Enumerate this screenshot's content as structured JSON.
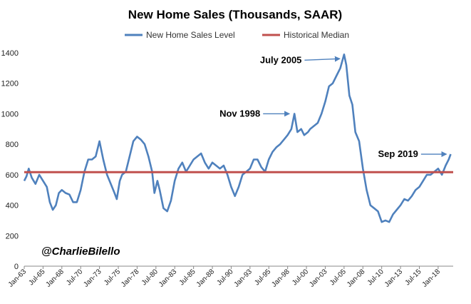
{
  "chart_data": {
    "type": "line",
    "title": "New Home Sales (Thousands, SAAR)",
    "xlabel": "",
    "ylabel": "",
    "ylim": [
      0,
      1400
    ],
    "yticks": [
      0,
      200,
      400,
      600,
      800,
      1000,
      1200,
      1400
    ],
    "legend_position": "top",
    "grid": false,
    "x_tick_labels": [
      "Jan-63",
      "Jul-65",
      "Jan-68",
      "Jul-70",
      "Jan-73",
      "Jul-75",
      "Jan-78",
      "Jul-80",
      "Jan-83",
      "Jul-85",
      "Jan-88",
      "Jul-90",
      "Jan-93",
      "Jul-95",
      "Jan-98",
      "Jul-00",
      "Jan-03",
      "Jul-05",
      "Jan-08",
      "Jul-10",
      "Jan-13",
      "Jul-15",
      "Jan-18"
    ],
    "series": [
      {
        "name": "New Home Sales Level",
        "color": "#4f81bd",
        "points": [
          [
            1963.0,
            560
          ],
          [
            1963.3,
            590
          ],
          [
            1963.6,
            640
          ],
          [
            1964.0,
            580
          ],
          [
            1964.5,
            540
          ],
          [
            1965.0,
            600
          ],
          [
            1965.5,
            560
          ],
          [
            1966.0,
            520
          ],
          [
            1966.4,
            420
          ],
          [
            1966.8,
            370
          ],
          [
            1967.2,
            400
          ],
          [
            1967.6,
            480
          ],
          [
            1968.0,
            500
          ],
          [
            1968.5,
            480
          ],
          [
            1969.0,
            470
          ],
          [
            1969.5,
            420
          ],
          [
            1970.0,
            420
          ],
          [
            1970.5,
            500
          ],
          [
            1971.0,
            620
          ],
          [
            1971.5,
            700
          ],
          [
            1972.0,
            700
          ],
          [
            1972.5,
            720
          ],
          [
            1973.0,
            820
          ],
          [
            1973.5,
            700
          ],
          [
            1974.0,
            600
          ],
          [
            1974.5,
            540
          ],
          [
            1975.0,
            480
          ],
          [
            1975.3,
            440
          ],
          [
            1975.7,
            560
          ],
          [
            1976.0,
            600
          ],
          [
            1976.5,
            620
          ],
          [
            1977.0,
            720
          ],
          [
            1977.5,
            820
          ],
          [
            1978.0,
            850
          ],
          [
            1978.5,
            830
          ],
          [
            1979.0,
            800
          ],
          [
            1979.5,
            720
          ],
          [
            1980.0,
            620
          ],
          [
            1980.3,
            480
          ],
          [
            1980.7,
            560
          ],
          [
            1981.0,
            500
          ],
          [
            1981.5,
            380
          ],
          [
            1982.0,
            360
          ],
          [
            1982.5,
            430
          ],
          [
            1983.0,
            560
          ],
          [
            1983.5,
            640
          ],
          [
            1984.0,
            680
          ],
          [
            1984.5,
            620
          ],
          [
            1985.0,
            660
          ],
          [
            1985.5,
            700
          ],
          [
            1986.0,
            720
          ],
          [
            1986.5,
            740
          ],
          [
            1987.0,
            680
          ],
          [
            1987.5,
            640
          ],
          [
            1988.0,
            680
          ],
          [
            1988.5,
            660
          ],
          [
            1989.0,
            640
          ],
          [
            1989.5,
            660
          ],
          [
            1990.0,
            600
          ],
          [
            1990.5,
            520
          ],
          [
            1991.0,
            460
          ],
          [
            1991.5,
            520
          ],
          [
            1992.0,
            600
          ],
          [
            1992.5,
            620
          ],
          [
            1993.0,
            640
          ],
          [
            1993.5,
            700
          ],
          [
            1994.0,
            700
          ],
          [
            1994.5,
            650
          ],
          [
            1995.0,
            620
          ],
          [
            1995.5,
            700
          ],
          [
            1996.0,
            750
          ],
          [
            1996.5,
            780
          ],
          [
            1997.0,
            800
          ],
          [
            1997.5,
            830
          ],
          [
            1998.0,
            860
          ],
          [
            1998.5,
            900
          ],
          [
            1998.9,
            1000
          ],
          [
            1999.3,
            880
          ],
          [
            1999.8,
            900
          ],
          [
            2000.2,
            860
          ],
          [
            2000.7,
            880
          ],
          [
            2001.0,
            900
          ],
          [
            2001.5,
            920
          ],
          [
            2002.0,
            940
          ],
          [
            2002.5,
            1000
          ],
          [
            2003.0,
            1080
          ],
          [
            2003.5,
            1180
          ],
          [
            2004.0,
            1200
          ],
          [
            2004.5,
            1250
          ],
          [
            2005.0,
            1300
          ],
          [
            2005.5,
            1389
          ],
          [
            2005.8,
            1320
          ],
          [
            2006.2,
            1120
          ],
          [
            2006.6,
            1060
          ],
          [
            2007.0,
            880
          ],
          [
            2007.5,
            820
          ],
          [
            2008.0,
            640
          ],
          [
            2008.5,
            500
          ],
          [
            2009.0,
            400
          ],
          [
            2009.5,
            380
          ],
          [
            2010.0,
            360
          ],
          [
            2010.5,
            290
          ],
          [
            2011.0,
            300
          ],
          [
            2011.5,
            290
          ],
          [
            2012.0,
            340
          ],
          [
            2012.5,
            370
          ],
          [
            2013.0,
            400
          ],
          [
            2013.5,
            440
          ],
          [
            2014.0,
            430
          ],
          [
            2014.5,
            460
          ],
          [
            2015.0,
            500
          ],
          [
            2015.5,
            520
          ],
          [
            2016.0,
            560
          ],
          [
            2016.5,
            600
          ],
          [
            2017.0,
            600
          ],
          [
            2017.5,
            620
          ],
          [
            2018.0,
            640
          ],
          [
            2018.5,
            600
          ],
          [
            2019.0,
            660
          ],
          [
            2019.4,
            700
          ],
          [
            2019.67,
            735
          ]
        ]
      },
      {
        "name": "Historical Median",
        "color": "#c0504d",
        "value": 617
      }
    ],
    "annotations": [
      {
        "text": "July 2005",
        "x": 2005.5,
        "y": 1389
      },
      {
        "text": "Nov 1998",
        "x": 1998.8,
        "y": 1000
      },
      {
        "text": "Sep 2019",
        "x": 2019.67,
        "y": 735
      }
    ],
    "credit": "@CharlieBilello"
  }
}
